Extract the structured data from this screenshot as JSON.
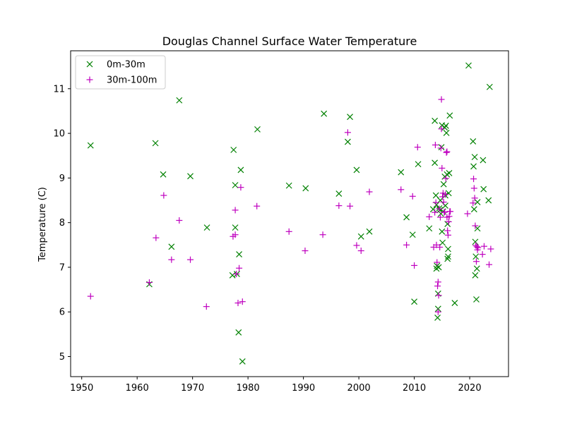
{
  "chart_data": {
    "type": "scatter",
    "title": "Douglas Channel Surface Water Temperature",
    "xlabel": "",
    "ylabel": "Temperature (C)",
    "xlim": [
      1948,
      2027
    ],
    "ylim": [
      4.55,
      11.85
    ],
    "x_ticks": [
      1950,
      1960,
      1970,
      1980,
      1990,
      2000,
      2010,
      2020
    ],
    "y_ticks": [
      5,
      6,
      7,
      8,
      9,
      10,
      11
    ],
    "grid": false,
    "legend_position": "upper-left",
    "series": [
      {
        "name": "0m-30m",
        "marker": "x",
        "color": "#008000",
        "points": [
          [
            1951.6,
            9.73
          ],
          [
            1962.2,
            6.62
          ],
          [
            1963.3,
            9.78
          ],
          [
            1964.7,
            9.08
          ],
          [
            1966.2,
            7.46
          ],
          [
            1967.6,
            10.74
          ],
          [
            1969.6,
            9.04
          ],
          [
            1972.6,
            7.89
          ],
          [
            1977.2,
            6.82
          ],
          [
            1977.4,
            9.63
          ],
          [
            1977.7,
            8.84
          ],
          [
            1977.7,
            7.89
          ],
          [
            1978.0,
            6.85
          ],
          [
            1978.3,
            5.54
          ],
          [
            1978.4,
            7.29
          ],
          [
            1978.7,
            9.18
          ],
          [
            1979.0,
            4.89
          ],
          [
            1981.7,
            10.09
          ],
          [
            1987.4,
            8.83
          ],
          [
            1990.4,
            8.77
          ],
          [
            1993.7,
            10.44
          ],
          [
            1996.4,
            8.65
          ],
          [
            1998.0,
            9.81
          ],
          [
            1998.4,
            10.37
          ],
          [
            1999.6,
            9.18
          ],
          [
            2000.4,
            7.69
          ],
          [
            2001.9,
            7.8
          ],
          [
            2007.6,
            9.13
          ],
          [
            2008.6,
            8.12
          ],
          [
            2009.7,
            7.73
          ],
          [
            2010.0,
            6.23
          ],
          [
            2010.7,
            9.31
          ],
          [
            2012.7,
            7.87
          ],
          [
            2013.4,
            8.3
          ],
          [
            2013.7,
            10.28
          ],
          [
            2013.7,
            9.34
          ],
          [
            2013.9,
            8.61
          ],
          [
            2014.0,
            8.4
          ],
          [
            2014.0,
            6.97
          ],
          [
            2014.1,
            7.03
          ],
          [
            2014.2,
            5.87
          ],
          [
            2014.3,
            6.07
          ],
          [
            2014.3,
            6.41
          ],
          [
            2014.4,
            7.0
          ],
          [
            2014.5,
            8.32
          ],
          [
            2014.6,
            8.28
          ],
          [
            2014.7,
            8.5
          ],
          [
            2014.8,
            8.2
          ],
          [
            2014.9,
            9.69
          ],
          [
            2015.0,
            10.18
          ],
          [
            2015.0,
            7.8
          ],
          [
            2015.1,
            7.55
          ],
          [
            2015.2,
            8.25
          ],
          [
            2015.3,
            8.86
          ],
          [
            2015.5,
            9.03
          ],
          [
            2015.5,
            10.13
          ],
          [
            2015.6,
            8.61
          ],
          [
            2015.6,
            8.38
          ],
          [
            2015.7,
            10.17
          ],
          [
            2015.8,
            10.01
          ],
          [
            2015.9,
            9.08
          ],
          [
            2016.0,
            7.97
          ],
          [
            2016.0,
            7.19
          ],
          [
            2016.1,
            7.41
          ],
          [
            2016.1,
            7.24
          ],
          [
            2016.2,
            8.66
          ],
          [
            2016.3,
            9.11
          ],
          [
            2016.4,
            10.4
          ],
          [
            2017.3,
            6.2
          ],
          [
            2019.8,
            11.52
          ],
          [
            2020.6,
            9.82
          ],
          [
            2020.7,
            9.26
          ],
          [
            2020.8,
            8.3
          ],
          [
            2020.9,
            9.47
          ],
          [
            2021.0,
            7.57
          ],
          [
            2021.0,
            6.82
          ],
          [
            2021.1,
            7.24
          ],
          [
            2021.2,
            6.28
          ],
          [
            2021.3,
            6.97
          ],
          [
            2021.4,
            8.46
          ],
          [
            2021.4,
            7.87
          ],
          [
            2022.4,
            9.4
          ],
          [
            2022.5,
            8.75
          ],
          [
            2023.4,
            8.5
          ],
          [
            2023.6,
            11.04
          ]
        ]
      },
      {
        "name": "30m-100m",
        "marker": "+",
        "color": "#bf00bf",
        "points": [
          [
            1951.6,
            6.35
          ],
          [
            1962.2,
            6.66
          ],
          [
            1963.4,
            7.66
          ],
          [
            1964.8,
            8.61
          ],
          [
            1966.2,
            7.17
          ],
          [
            1967.6,
            8.05
          ],
          [
            1969.6,
            7.17
          ],
          [
            1972.5,
            6.12
          ],
          [
            1977.3,
            7.69
          ],
          [
            1977.7,
            8.28
          ],
          [
            1977.7,
            7.73
          ],
          [
            1977.9,
            6.85
          ],
          [
            1978.2,
            6.2
          ],
          [
            1978.4,
            6.98
          ],
          [
            1978.7,
            8.79
          ],
          [
            1979.0,
            6.23
          ],
          [
            1981.6,
            8.37
          ],
          [
            1987.4,
            7.8
          ],
          [
            1990.3,
            7.37
          ],
          [
            1993.5,
            7.73
          ],
          [
            1996.4,
            8.38
          ],
          [
            1998.0,
            10.02
          ],
          [
            1998.4,
            8.37
          ],
          [
            1999.6,
            7.49
          ],
          [
            2000.4,
            7.37
          ],
          [
            2001.9,
            8.69
          ],
          [
            2007.6,
            8.74
          ],
          [
            2008.6,
            7.5
          ],
          [
            2009.7,
            8.59
          ],
          [
            2010.0,
            7.04
          ],
          [
            2010.6,
            9.69
          ],
          [
            2012.7,
            8.13
          ],
          [
            2013.5,
            7.45
          ],
          [
            2013.7,
            8.23
          ],
          [
            2013.8,
            9.74
          ],
          [
            2013.9,
            8.45
          ],
          [
            2014.0,
            7.5
          ],
          [
            2014.1,
            7.11
          ],
          [
            2014.2,
            6.58
          ],
          [
            2014.3,
            6.67
          ],
          [
            2014.3,
            6.0
          ],
          [
            2014.4,
            6.37
          ],
          [
            2014.5,
            8.31
          ],
          [
            2014.6,
            7.45
          ],
          [
            2014.7,
            8.12
          ],
          [
            2014.8,
            9.67
          ],
          [
            2014.9,
            10.76
          ],
          [
            2014.9,
            10.1
          ],
          [
            2015.0,
            9.22
          ],
          [
            2015.1,
            8.58
          ],
          [
            2015.2,
            8.66
          ],
          [
            2015.3,
            8.46
          ],
          [
            2015.4,
            8.23
          ],
          [
            2015.5,
            8.24
          ],
          [
            2015.6,
            8.63
          ],
          [
            2015.7,
            8.99
          ],
          [
            2015.8,
            9.57
          ],
          [
            2015.9,
            9.59
          ],
          [
            2015.9,
            8.12
          ],
          [
            2016.0,
            7.82
          ],
          [
            2016.1,
            7.72
          ],
          [
            2016.2,
            8.02
          ],
          [
            2016.3,
            8.14
          ],
          [
            2016.4,
            8.25
          ],
          [
            2016.5,
            8.25
          ],
          [
            2019.6,
            8.2
          ],
          [
            2020.6,
            8.44
          ],
          [
            2020.7,
            8.98
          ],
          [
            2020.8,
            8.77
          ],
          [
            2020.9,
            8.55
          ],
          [
            2021.0,
            7.93
          ],
          [
            2021.1,
            7.49
          ],
          [
            2021.2,
            7.13
          ],
          [
            2021.3,
            7.46
          ],
          [
            2021.4,
            7.39
          ],
          [
            2021.5,
            7.44
          ],
          [
            2022.3,
            7.29
          ],
          [
            2022.6,
            7.47
          ],
          [
            2023.5,
            7.06
          ],
          [
            2023.8,
            7.41
          ]
        ]
      }
    ]
  }
}
